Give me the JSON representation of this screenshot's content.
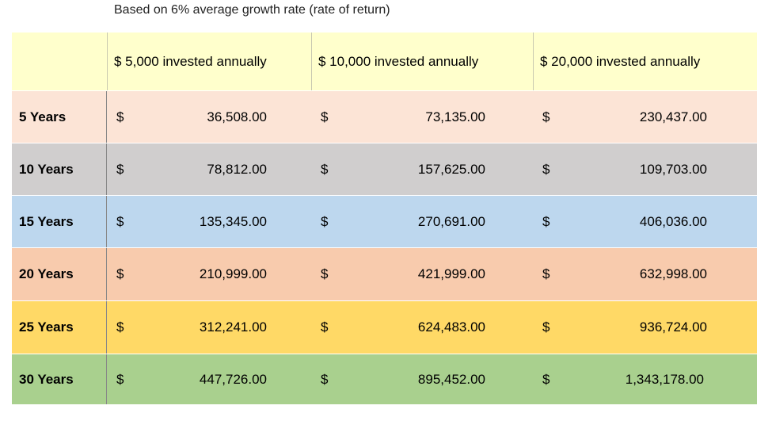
{
  "caption": "Based on 6% average growth rate (rate of return)",
  "headers": [
    "",
    "$ 5,000 invested annually",
    "$ 10,000 invested annually",
    "$ 20,000 invested annually"
  ],
  "currency_symbol": "$",
  "rows": [
    {
      "label": "5 Years",
      "values": [
        "36,508.00",
        "73,135.00",
        "230,437.00"
      ],
      "color": "#fce4d6"
    },
    {
      "label": "10 Years",
      "values": [
        "78,812.00",
        "157,625.00",
        "109,703.00"
      ],
      "color": "#d0cece"
    },
    {
      "label": "15 Years",
      "values": [
        "135,345.00",
        "270,691.00",
        "406,036.00"
      ],
      "color": "#bdd7ee"
    },
    {
      "label": "20 Years",
      "values": [
        "210,999.00",
        "421,999.00",
        "632,998.00"
      ],
      "color": "#f8cbad"
    },
    {
      "label": "25 Years",
      "values": [
        "312,241.00",
        "624,483.00",
        "936,724.00"
      ],
      "color": "#ffd966"
    },
    {
      "label": "30 Years",
      "values": [
        "447,726.00",
        "895,452.00",
        "1,343,178.00"
      ],
      "color": "#a9d08e"
    }
  ]
}
